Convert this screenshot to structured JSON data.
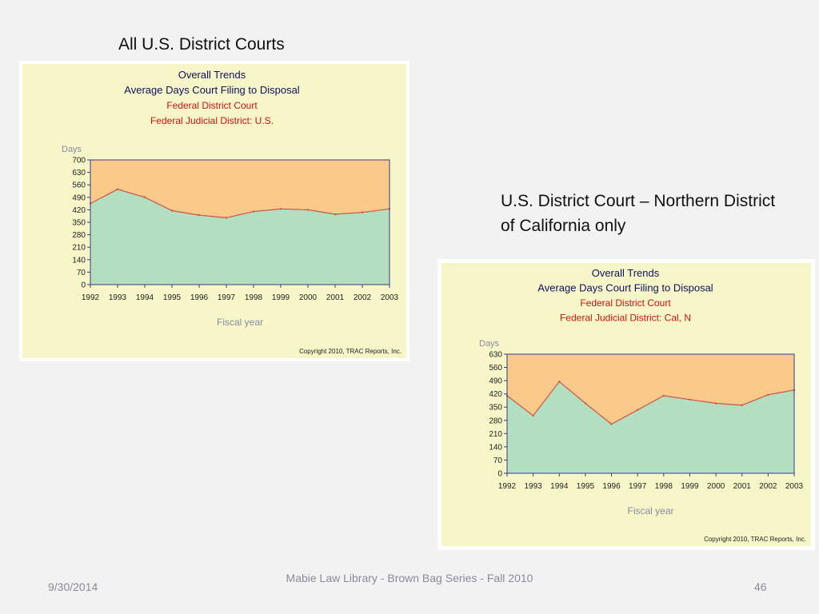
{
  "captions": {
    "left": "All U.S. District Courts",
    "right": "U.S. District Court – Northern District of California only"
  },
  "footer": {
    "date": "9/30/2014",
    "center": "Mabie Law Library - Brown Bag Series - Fall 2010",
    "page": "46"
  },
  "chart_data": [
    {
      "type": "area",
      "title": "Overall Trends",
      "subtitle": "Average Days Court Filing to Disposal",
      "subtitle2": "Federal District Court",
      "subtitle3": "Federal Judicial District: U.S.",
      "ylabel": "Days",
      "xlabel": "Fiscal year",
      "copyright": "Copyright 2010, TRAC Reports, Inc.",
      "ylim": [
        0,
        700
      ],
      "yticks": [
        "0",
        "70",
        "140",
        "210",
        "280",
        "350",
        "420",
        "490",
        "560",
        "630",
        "700"
      ],
      "x": [
        "1992",
        "1993",
        "1994",
        "1995",
        "1996",
        "1997",
        "1998",
        "1999",
        "2000",
        "2001",
        "2002",
        "2003"
      ],
      "values": [
        455,
        535,
        490,
        415,
        390,
        375,
        410,
        425,
        420,
        395,
        405,
        425
      ],
      "colors": {
        "area": "#b2dfbf",
        "background": "#fbc98a",
        "line": "#d0534a",
        "panel": "#f6f6c8",
        "axis": "#3a3a8a"
      }
    },
    {
      "type": "area",
      "title": "Overall Trends",
      "subtitle": "Average Days Court Filing to Disposal",
      "subtitle2": "Federal District Court",
      "subtitle3": "Federal Judicial District: Cal, N",
      "ylabel": "Days",
      "xlabel": "Fiscal year",
      "copyright": "Copyright 2010, TRAC Reports, Inc.",
      "ylim": [
        0,
        630
      ],
      "yticks": [
        "0",
        "70",
        "140",
        "210",
        "280",
        "350",
        "420",
        "490",
        "560",
        "630"
      ],
      "x": [
        "1992",
        "1993",
        "1994",
        "1995",
        "1996",
        "1997",
        "1998",
        "1999",
        "2000",
        "2001",
        "2002",
        "2003"
      ],
      "values": [
        410,
        305,
        485,
        370,
        260,
        335,
        410,
        390,
        370,
        360,
        415,
        440
      ],
      "colors": {
        "area": "#b2dfbf",
        "background": "#fbc98a",
        "line": "#d0534a",
        "panel": "#f6f6c8",
        "axis": "#3a3a8a"
      }
    }
  ]
}
